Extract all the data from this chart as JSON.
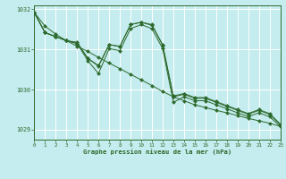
{
  "background_color": "#c5ecee",
  "grid_color": "#ffffff",
  "line_color": "#2d6a2d",
  "title": "Graphe pression niveau de la mer (hPa)",
  "xlim": [
    0,
    23
  ],
  "ylim": [
    1028.75,
    1032.1
  ],
  "yticks": [
    1029,
    1030,
    1031,
    1032
  ],
  "xticks": [
    0,
    1,
    2,
    3,
    4,
    5,
    6,
    7,
    8,
    9,
    10,
    11,
    12,
    13,
    14,
    15,
    16,
    17,
    18,
    19,
    20,
    21,
    22,
    23
  ],
  "x": [
    0,
    1,
    2,
    3,
    4,
    5,
    6,
    7,
    8,
    9,
    10,
    11,
    12,
    13,
    14,
    15,
    16,
    17,
    18,
    19,
    20,
    21,
    22,
    23
  ],
  "series1": [
    1031.92,
    1031.42,
    1031.32,
    1031.22,
    1031.15,
    1030.72,
    1030.4,
    1031.02,
    1030.97,
    1031.52,
    1031.62,
    1031.52,
    1031.02,
    1029.68,
    1029.82,
    1029.72,
    1029.72,
    1029.62,
    1029.52,
    1029.42,
    1029.32,
    1029.42,
    1029.32,
    1029.08
  ],
  "series2": [
    1031.92,
    1031.42,
    1031.32,
    1031.22,
    1031.15,
    1030.78,
    1030.58,
    1031.12,
    1031.07,
    1031.62,
    1031.68,
    1031.62,
    1031.1,
    1029.82,
    1029.88,
    1029.78,
    1029.78,
    1029.68,
    1029.58,
    1029.48,
    1029.38,
    1029.48,
    1029.38,
    1029.12
  ],
  "series3": [
    1031.92,
    1031.42,
    1031.32,
    1031.22,
    1031.18,
    1030.78,
    1030.6,
    1031.12,
    1031.08,
    1031.62,
    1031.68,
    1031.6,
    1031.12,
    1029.84,
    1029.9,
    1029.8,
    1029.8,
    1029.7,
    1029.6,
    1029.5,
    1029.4,
    1029.5,
    1029.4,
    1029.14
  ],
  "smooth": [
    1031.92,
    1031.58,
    1031.38,
    1031.22,
    1031.08,
    1030.95,
    1030.8,
    1030.66,
    1030.52,
    1030.38,
    1030.24,
    1030.1,
    1029.95,
    1029.82,
    1029.72,
    1029.62,
    1029.55,
    1029.48,
    1029.42,
    1029.35,
    1029.28,
    1029.22,
    1029.16,
    1029.08
  ]
}
